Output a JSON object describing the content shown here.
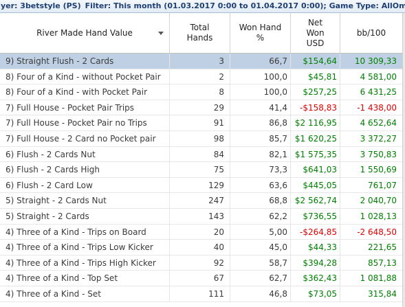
{
  "filter_bar": {
    "player_text": "yer: 3betstyle (PS)",
    "filter_text": "Filter: This month (01.03.2017 0:00 to 01.04.2017 0:00); Game Type: AllOmaha"
  },
  "columns": {
    "name": "River Made Hand Value",
    "total": "Total\nHands",
    "won": "Won Hand\n%",
    "net": "Net\nWon\nUSD",
    "bb": "bb/100"
  },
  "colors": {
    "positive": "#008000",
    "negative": "#e00000",
    "selected_row": "#bfd0e4"
  },
  "rows": [
    {
      "name": "9) Straight Flush - 2 Cards",
      "total": "3",
      "won": "66,7",
      "net": "$154,64",
      "bb": "10 309,33",
      "sign": "pos",
      "selected": true
    },
    {
      "name": "8) Four of a Kind - without Pocket Pair",
      "total": "2",
      "won": "100,0",
      "net": "$45,81",
      "bb": "4 581,00",
      "sign": "pos"
    },
    {
      "name": "8) Four of a Kind - with Pocket Pair",
      "total": "8",
      "won": "100,0",
      "net": "$257,25",
      "bb": "6 431,25",
      "sign": "pos"
    },
    {
      "name": "7) Full House - Pocket Pair Trips",
      "total": "29",
      "won": "41,4",
      "net": "-$158,83",
      "bb": "-1 438,00",
      "sign": "neg"
    },
    {
      "name": "7) Full House - Pocket Pair no Trips",
      "total": "91",
      "won": "86,8",
      "net": "$2 116,95",
      "bb": "4 652,64",
      "sign": "pos"
    },
    {
      "name": "7) Full House - 2 Card no Pocket pair",
      "total": "98",
      "won": "85,7",
      "net": "$1 620,25",
      "bb": "3 372,27",
      "sign": "pos"
    },
    {
      "name": "6) Flush - 2 Cards Nut",
      "total": "84",
      "won": "82,1",
      "net": "$1 575,35",
      "bb": "3 750,83",
      "sign": "pos"
    },
    {
      "name": "6) Flush - 2 Cards High",
      "total": "75",
      "won": "73,3",
      "net": "$641,03",
      "bb": "1 550,69",
      "sign": "pos"
    },
    {
      "name": "6) Flush - 2 Card Low",
      "total": "129",
      "won": "63,6",
      "net": "$445,05",
      "bb": "761,07",
      "sign": "pos"
    },
    {
      "name": "5) Straight - 2 Cards Nut",
      "total": "247",
      "won": "68,8",
      "net": "$2 562,74",
      "bb": "2 040,70",
      "sign": "pos"
    },
    {
      "name": "5) Straight - 2 Cards",
      "total": "143",
      "won": "62,2",
      "net": "$736,55",
      "bb": "1 028,13",
      "sign": "pos"
    },
    {
      "name": "4) Three of a Kind - Trips on Board",
      "total": "20",
      "won": "5,00",
      "net": "-$264,85",
      "bb": "-2 648,50",
      "sign": "neg"
    },
    {
      "name": "4) Three of a Kind - Trips Low Kicker",
      "total": "40",
      "won": "45,0",
      "net": "$44,33",
      "bb": "221,65",
      "sign": "pos"
    },
    {
      "name": "4) Three of a Kind - Trips High Kicker",
      "total": "92",
      "won": "58,7",
      "net": "$394,28",
      "bb": "857,13",
      "sign": "pos"
    },
    {
      "name": "4) Three of a Kind - Top Set",
      "total": "67",
      "won": "62,7",
      "net": "$362,43",
      "bb": "1 081,88",
      "sign": "pos"
    },
    {
      "name": "4) Three of a Kind - Set",
      "total": "111",
      "won": "46,8",
      "net": "$73,05",
      "bb": "315,84",
      "sign": "pos"
    }
  ]
}
